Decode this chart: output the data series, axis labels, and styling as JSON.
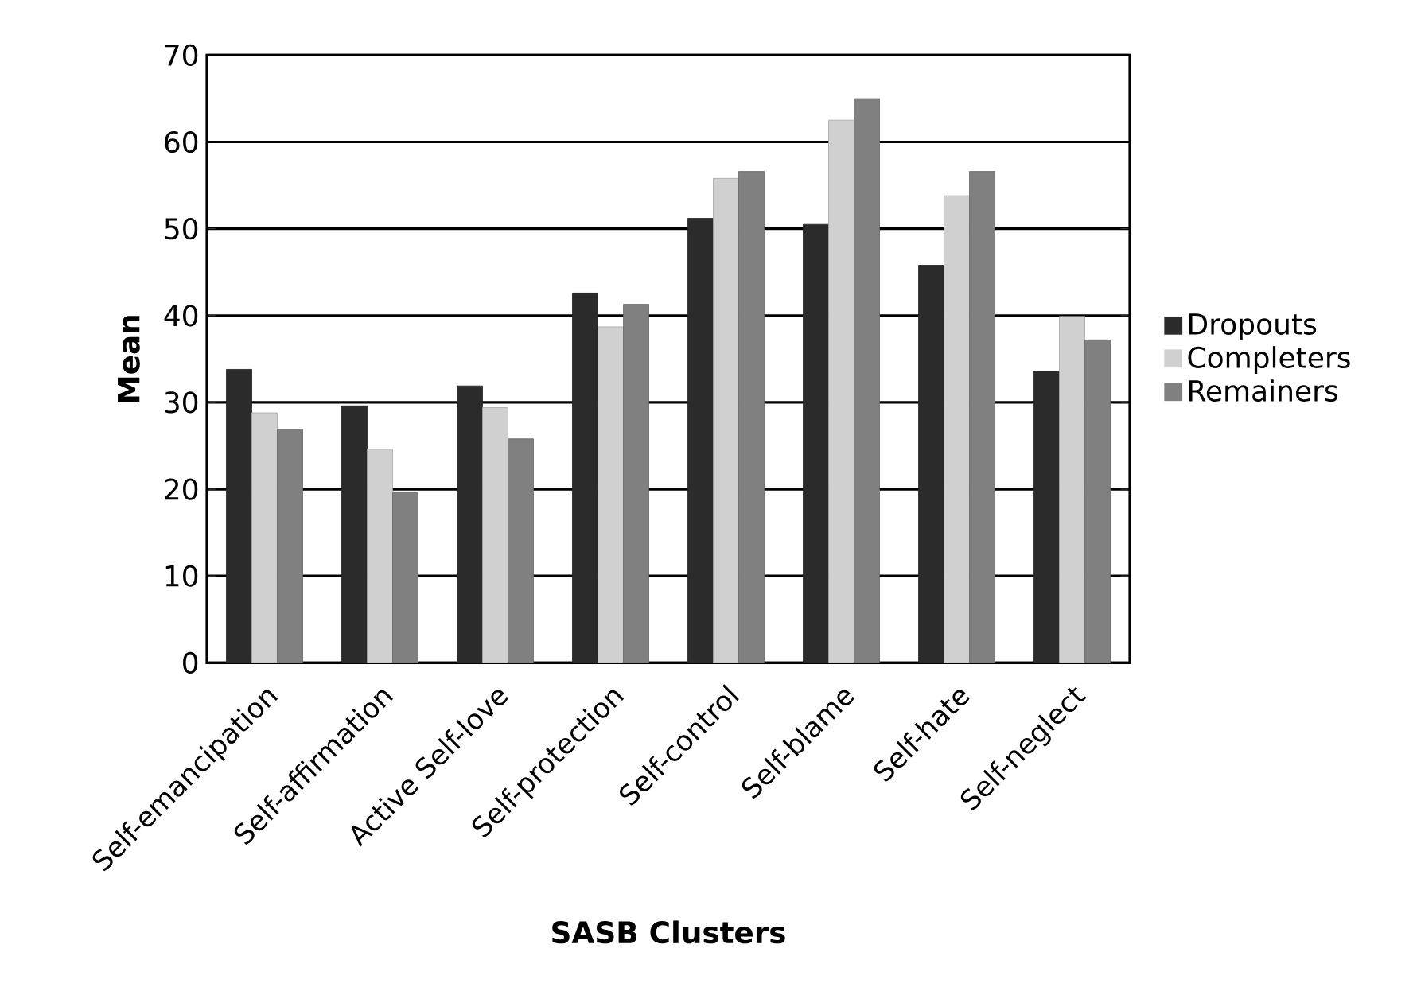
{
  "chart_data": {
    "type": "bar",
    "xlabel": "SASB Clusters",
    "ylabel": "Mean",
    "categories": [
      "Self-emancipation",
      "Self-affirmation",
      "Active Self-love",
      "Self-protection",
      "Self-control",
      "Self-blame",
      "Self-hate",
      "Self-neglect"
    ],
    "series": [
      {
        "name": "Dropouts",
        "color": "#2b2b2b",
        "values": [
          33.8,
          29.6,
          31.9,
          42.6,
          51.2,
          50.5,
          45.8,
          33.6
        ]
      },
      {
        "name": "Completers",
        "color": "#d0d0d0",
        "values": [
          28.8,
          24.6,
          29.4,
          38.7,
          55.8,
          62.5,
          53.8,
          39.9
        ]
      },
      {
        "name": "Remainers",
        "color": "#808080",
        "values": [
          26.9,
          19.6,
          25.8,
          41.3,
          56.6,
          65.0,
          56.6,
          37.2
        ]
      }
    ],
    "ylim": [
      0,
      70
    ],
    "yticks": [
      0,
      10,
      20,
      30,
      40,
      50,
      60,
      70
    ],
    "grid": "y",
    "legend": "right"
  }
}
